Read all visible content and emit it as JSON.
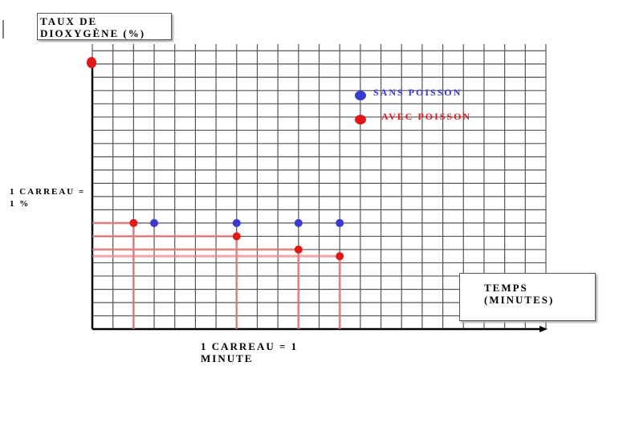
{
  "chart_data": {
    "type": "scatter",
    "y_label": "TAUX DE DIOXYGÈNE (%)",
    "x_label": "TEMPS (MINUTES)",
    "y_note": "1 CARREAU = 1 %",
    "x_note": "1 CARREAU = 1 MINUTE",
    "xlim": [
      0,
      22
    ],
    "ylim": [
      0,
      21.5
    ],
    "xticks": [
      0,
      1,
      2,
      3,
      4,
      5,
      6,
      7,
      8,
      9,
      10,
      11,
      12,
      13,
      14,
      15,
      16,
      17,
      18,
      19,
      20,
      21,
      22
    ],
    "yticks": [
      0,
      1,
      2,
      3,
      4,
      5,
      6,
      7,
      8,
      9,
      10,
      11,
      12,
      13,
      14,
      15,
      16,
      17,
      18,
      19,
      20,
      21
    ],
    "grid": true,
    "series": [
      {
        "name": "SANS POISSON",
        "color": "#3a3ad0",
        "x": [
          3,
          7,
          10,
          12
        ],
        "values": [
          8,
          8,
          8,
          8
        ]
      },
      {
        "name": "AVEC POISSON",
        "color": "#e01818",
        "x": [
          2,
          7,
          10,
          12
        ],
        "values": [
          8,
          7,
          6,
          5.5
        ],
        "projections": true
      }
    ]
  }
}
